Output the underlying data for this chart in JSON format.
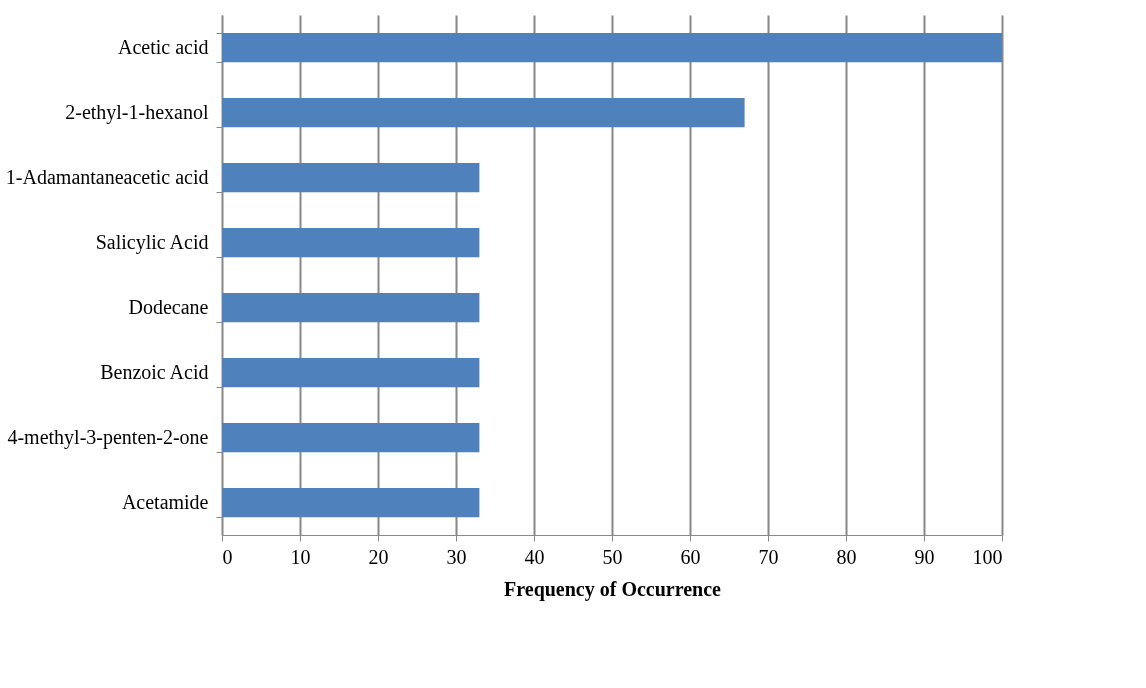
{
  "chart_data": {
    "type": "bar",
    "orientation": "horizontal",
    "xlabel": "Frequency of Occurrence",
    "categories": [
      "Acetic acid",
      "2-ethyl-1-hexanol",
      "1-Adamantaneacetic acid",
      "Salicylic Acid",
      "Dodecane",
      "Benzoic Acid",
      "4-methyl-3-penten-2-one",
      "Acetamide"
    ],
    "values": [
      100,
      67,
      33,
      33,
      33,
      33,
      33,
      33
    ],
    "color": "#4f81bd",
    "xlim": [
      0,
      100
    ],
    "xticks": [
      0,
      10,
      20,
      30,
      40,
      50,
      60,
      70,
      80,
      90,
      100
    ],
    "grid": "x"
  }
}
